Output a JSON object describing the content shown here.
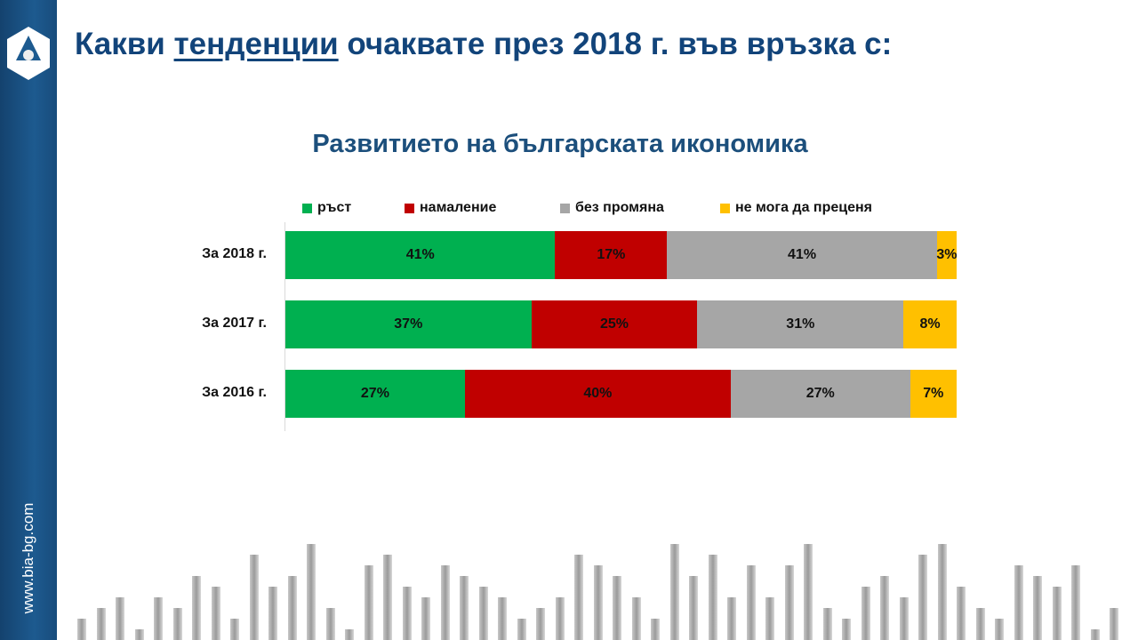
{
  "header": {
    "title_before": "Какви ",
    "title_underlined": "тенденции",
    "title_after": " очаквате през 2018 г. във връзка с:"
  },
  "sidebar": {
    "url": "www.bia-bg.com"
  },
  "chart_data": {
    "type": "bar",
    "orientation": "horizontal-stacked",
    "title": "Развитието на българската икономика",
    "categories": [
      "За 2018 г.",
      "За 2017 г.",
      "За 2016 г."
    ],
    "series": [
      {
        "name": "ръст",
        "color": "#00b050",
        "values": [
          41,
          37,
          27
        ]
      },
      {
        "name": "намаление",
        "color": "#c00000",
        "values": [
          17,
          25,
          40
        ]
      },
      {
        "name": "без промяна",
        "color": "#a6a6a6",
        "values": [
          41,
          31,
          27
        ]
      },
      {
        "name": "не мога да преценя",
        "color": "#ffc000",
        "values": [
          3,
          8,
          7
        ]
      }
    ],
    "value_suffix": "%",
    "legend_position": "top",
    "grid": false
  }
}
